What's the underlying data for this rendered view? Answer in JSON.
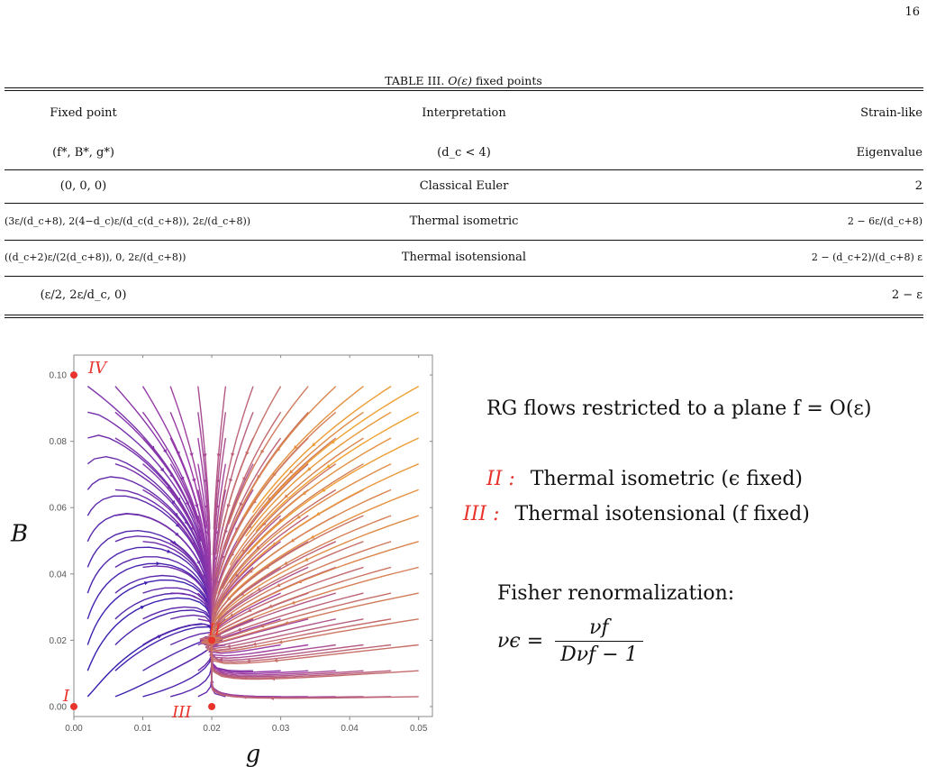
{
  "page_number": "16",
  "table": {
    "caption_prefix": "TABLE III.",
    "caption_math": "O(ε)",
    "caption_suffix": "fixed points",
    "headers_row1": [
      "Fixed point",
      "Interpretation",
      "Strain-like"
    ],
    "headers_row2": [
      "(f*, B*, g*)",
      "(d_c < 4)",
      "Eigenvalue"
    ],
    "rows": [
      {
        "point": "(0, 0, 0)",
        "interpretation": "Classical Euler",
        "eigenvalue": "2"
      },
      {
        "point": "(3ε/(d_c+8), 2(4−d_c)ε/(d_c(d_c+8)), 2ε/(d_c+8))",
        "interpretation": "Thermal isometric",
        "eigenvalue": "2 − 6ε/(d_c+8)"
      },
      {
        "point": "((d_c+2)ε/(2(d_c+8)), 0, 2ε/(d_c+8))",
        "interpretation": "Thermal isotensional",
        "eigenvalue": "2 − (d_c+2)/(d_c+8) ε"
      },
      {
        "point": "(ε/2, 2ε/d_c, 0)",
        "interpretation": "",
        "eigenvalue": "2 − ε"
      }
    ]
  },
  "chart_data": {
    "type": "stream",
    "title": "",
    "xlabel": "g",
    "ylabel": "B",
    "xlim": [
      0,
      0.052
    ],
    "ylim": [
      -0.003,
      0.106
    ],
    "x_ticks": [
      "0.00",
      "0.01",
      "0.02",
      "0.03",
      "0.04",
      "0.05"
    ],
    "y_ticks": [
      "0.00",
      "0.02",
      "0.04",
      "0.06",
      "0.08",
      "0.10"
    ],
    "colors": {
      "low": "#2a1bb0",
      "mid": "#9a3aa8",
      "high": "#f0a030",
      "fixed_point": "#e8342c"
    },
    "fixed_points": [
      {
        "label": "I",
        "g": 0.0,
        "B": 0.0
      },
      {
        "label": "II",
        "g": 0.02,
        "B": 0.02
      },
      {
        "label": "III",
        "g": 0.02,
        "B": 0.0
      },
      {
        "label": "IV",
        "g": 0.0,
        "B": 0.1
      }
    ]
  },
  "side_text": {
    "rg_title": "RG flows restricted to a plane f = O(ε)",
    "legend": [
      {
        "label": "II :",
        "text": "Thermal isometric (ϵ fixed)"
      },
      {
        "label": "III :",
        "text": "Thermal isotensional (f fixed)"
      }
    ],
    "fisher_title": "Fisher renormalization:",
    "fisher_lhs": "νϵ =",
    "fisher_num": "νf",
    "fisher_den": "Dνf − 1"
  }
}
